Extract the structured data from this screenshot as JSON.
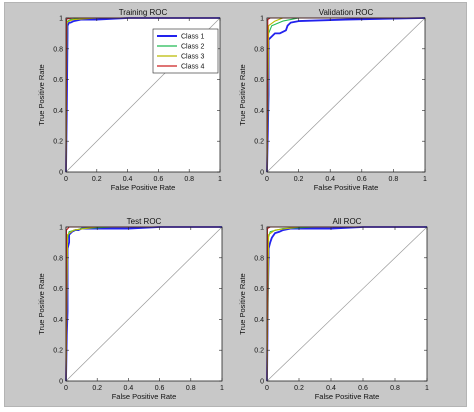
{
  "chart_data": [
    {
      "type": "line",
      "title": "Training ROC",
      "xlabel": "False Positive Rate",
      "ylabel": "True Positive Rate",
      "xlim": [
        0,
        1
      ],
      "ylim": [
        0,
        1
      ],
      "xticks": [
        "0",
        "0.2",
        "0.4",
        "0.6",
        "0.8",
        "1"
      ],
      "yticks": [
        "0",
        "0.2",
        "0.4",
        "0.6",
        "0.8",
        "1"
      ],
      "grid": false,
      "legend": "top-right",
      "series": [
        {
          "name": "Class 1",
          "color": "#2222ee",
          "x": [
            0,
            0.005,
            0.01,
            0.01,
            0.02,
            0.03,
            0.05,
            0.1,
            0.2,
            0.4,
            0.6,
            0.8,
            1
          ],
          "y": [
            0,
            0.4,
            0.9,
            0.95,
            0.97,
            0.97,
            0.98,
            0.99,
            0.99,
            1,
            1,
            1,
            1
          ]
        },
        {
          "name": "Class 2",
          "color": "#22bb55",
          "x": [
            0,
            0.005,
            0.01,
            0.03,
            0.1,
            0.3,
            1
          ],
          "y": [
            0,
            0.96,
            0.98,
            0.99,
            1,
            1,
            1
          ]
        },
        {
          "name": "Class 3",
          "color": "#bbbb00",
          "x": [
            0,
            0.005,
            0.02,
            0.05,
            0.2,
            1
          ],
          "y": [
            0,
            0.97,
            0.98,
            0.99,
            1,
            1
          ]
        },
        {
          "name": "Class 4",
          "color": "#cc2222",
          "x": [
            0,
            0.003,
            0.01,
            0.05,
            1
          ],
          "y": [
            0,
            0.99,
            0.995,
            1,
            1
          ]
        }
      ]
    },
    {
      "type": "line",
      "title": "Validation ROC",
      "xlabel": "False Positive Rate",
      "ylabel": "True Positive Rate",
      "xlim": [
        0,
        1
      ],
      "ylim": [
        0,
        1
      ],
      "xticks": [
        "0",
        "0.2",
        "0.4",
        "0.6",
        "0.8",
        "1"
      ],
      "yticks": [
        "0",
        "0.2",
        "0.4",
        "0.6",
        "0.8",
        "1"
      ],
      "grid": false,
      "series": [
        {
          "name": "Class 1",
          "color": "#2222ee",
          "x": [
            0,
            0.01,
            0.01,
            0.03,
            0.05,
            0.08,
            0.12,
            0.13,
            0.14,
            0.15,
            0.2,
            0.5,
            1
          ],
          "y": [
            0,
            0.5,
            0.86,
            0.88,
            0.9,
            0.9,
            0.92,
            0.95,
            0.96,
            0.97,
            0.98,
            0.99,
            1
          ]
        },
        {
          "name": "Class 2",
          "color": "#22bb55",
          "x": [
            0,
            0.01,
            0.03,
            0.1,
            0.2,
            1
          ],
          "y": [
            0,
            0.9,
            0.95,
            0.98,
            1,
            1
          ]
        },
        {
          "name": "Class 3",
          "color": "#bbbb00",
          "x": [
            0,
            0.01,
            0.05,
            0.1,
            1
          ],
          "y": [
            0,
            0.95,
            0.98,
            1,
            1
          ]
        },
        {
          "name": "Class 4",
          "color": "#cc2222",
          "x": [
            0,
            0.005,
            0.02,
            1
          ],
          "y": [
            0,
            0.99,
            1,
            1
          ]
        }
      ]
    },
    {
      "type": "line",
      "title": "Test ROC",
      "xlabel": "False Positive Rate",
      "ylabel": "True Positive Rate",
      "xlim": [
        0,
        1
      ],
      "ylim": [
        0,
        1
      ],
      "xticks": [
        "0",
        "0.2",
        "0.4",
        "0.6",
        "0.8",
        "1"
      ],
      "yticks": [
        "0",
        "0.2",
        "0.4",
        "0.6",
        "0.8",
        "1"
      ],
      "grid": false,
      "series": [
        {
          "name": "Class 1",
          "color": "#2222ee",
          "x": [
            0,
            0.005,
            0.01,
            0.01,
            0.02,
            0.02,
            0.03,
            0.04,
            0.06,
            0.08,
            0.1,
            0.2,
            0.4,
            0.6,
            0.8,
            1
          ],
          "y": [
            0,
            0.3,
            0.45,
            0.86,
            0.9,
            0.95,
            0.96,
            0.97,
            0.98,
            0.98,
            0.99,
            0.99,
            0.99,
            1,
            1,
            1
          ]
        },
        {
          "name": "Class 2",
          "color": "#22bb55",
          "x": [
            0,
            0.005,
            0.02,
            0.1,
            0.3,
            1
          ],
          "y": [
            0,
            0.9,
            0.97,
            0.99,
            1,
            1
          ]
        },
        {
          "name": "Class 3",
          "color": "#bbbb00",
          "x": [
            0,
            0.01,
            0.05,
            0.2,
            1
          ],
          "y": [
            0,
            0.95,
            0.98,
            1,
            1
          ]
        },
        {
          "name": "Class 4",
          "color": "#cc2222",
          "x": [
            0,
            0.003,
            0.02,
            1
          ],
          "y": [
            0,
            0.98,
            1,
            1
          ]
        }
      ]
    },
    {
      "type": "line",
      "title": "All ROC",
      "xlabel": "False Positive Rate",
      "ylabel": "True Positive Rate",
      "xlim": [
        0,
        1
      ],
      "ylim": [
        0,
        1
      ],
      "xticks": [
        "0",
        "0.2",
        "0.4",
        "0.6",
        "0.8",
        "1"
      ],
      "yticks": [
        "0",
        "0.2",
        "0.4",
        "0.6",
        "0.8",
        "1"
      ],
      "grid": false,
      "series": [
        {
          "name": "Class 1",
          "color": "#2222ee",
          "x": [
            0,
            0.005,
            0.01,
            0.01,
            0.02,
            0.03,
            0.05,
            0.08,
            0.1,
            0.15,
            0.2,
            0.4,
            0.6,
            0.8,
            1
          ],
          "y": [
            0,
            0.5,
            0.8,
            0.86,
            0.9,
            0.93,
            0.96,
            0.97,
            0.98,
            0.99,
            0.99,
            0.99,
            1,
            1,
            1
          ]
        },
        {
          "name": "Class 2",
          "color": "#22bb55",
          "x": [
            0,
            0.005,
            0.02,
            0.1,
            0.3,
            1
          ],
          "y": [
            0,
            0.92,
            0.97,
            0.99,
            1,
            1
          ]
        },
        {
          "name": "Class 3",
          "color": "#bbbb00",
          "x": [
            0,
            0.01,
            0.05,
            0.2,
            1
          ],
          "y": [
            0,
            0.95,
            0.98,
            1,
            1
          ]
        },
        {
          "name": "Class 4",
          "color": "#cc2222",
          "x": [
            0,
            0.003,
            0.02,
            1
          ],
          "y": [
            0,
            0.99,
            1,
            1
          ]
        }
      ]
    }
  ]
}
